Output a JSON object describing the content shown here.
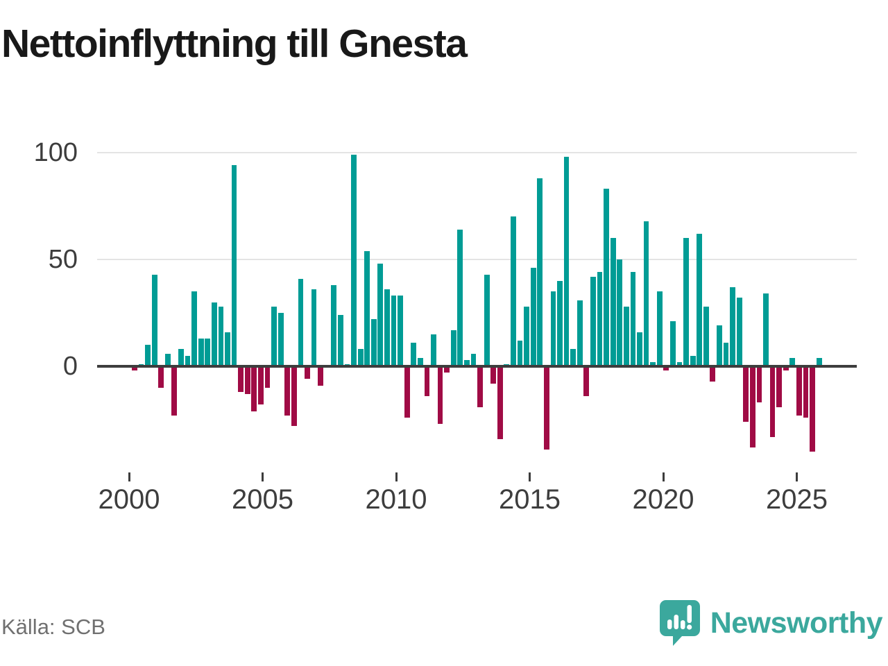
{
  "title": "Nettoinflyttning till Gnesta",
  "source": "Källa: SCB",
  "brand": {
    "name": "Newsworthy",
    "icon": "speech-bubble-bar-chart-icon",
    "color": "#3ba89d"
  },
  "colors": {
    "positive": "#009c95",
    "negative": "#a00b45",
    "axis": "#3d3d3d",
    "gridline": "#e4e4e4",
    "title_text": "#191919",
    "muted_text": "#707070"
  },
  "chart_data": {
    "type": "bar",
    "title": "Nettoinflyttning till Gnesta",
    "xlabel": "",
    "ylabel": "",
    "frequency": "quarterly",
    "start_period": "2000Q1",
    "end_period": "2025Q4",
    "x_tick_labels": [
      "2000",
      "2005",
      "2010",
      "2015",
      "2020",
      "2025"
    ],
    "y_ticks": [
      0,
      50,
      100
    ],
    "ylim": [
      -45,
      110
    ],
    "grid": "horizontal gridlines at 50 and 100, dark zero baseline",
    "legend": "none",
    "series": [
      {
        "name": "Nettoinflyttning",
        "values": [
          -2,
          1,
          10,
          43,
          -10,
          6,
          -23,
          8,
          5,
          35,
          13,
          13,
          30,
          28,
          16,
          94,
          -12,
          -13,
          -21,
          -18,
          -10,
          28,
          25,
          -23,
          -28,
          41,
          -6,
          36,
          -9,
          0,
          38,
          24,
          1,
          99,
          8,
          54,
          22,
          48,
          36,
          33,
          33,
          -24,
          11,
          4,
          -14,
          15,
          -27,
          -3,
          17,
          64,
          3,
          6,
          -19,
          43,
          -8,
          -34,
          1,
          70,
          12,
          28,
          46,
          88,
          -39,
          35,
          40,
          98,
          8,
          31,
          -14,
          42,
          44,
          83,
          60,
          50,
          28,
          44,
          16,
          68,
          2,
          35,
          -2,
          21,
          2,
          60,
          5,
          62,
          28,
          -7,
          19,
          11,
          37,
          32,
          -26,
          -38,
          -17,
          34,
          -33,
          -19,
          -2,
          4,
          -23,
          -24,
          -40,
          4
        ]
      }
    ]
  }
}
